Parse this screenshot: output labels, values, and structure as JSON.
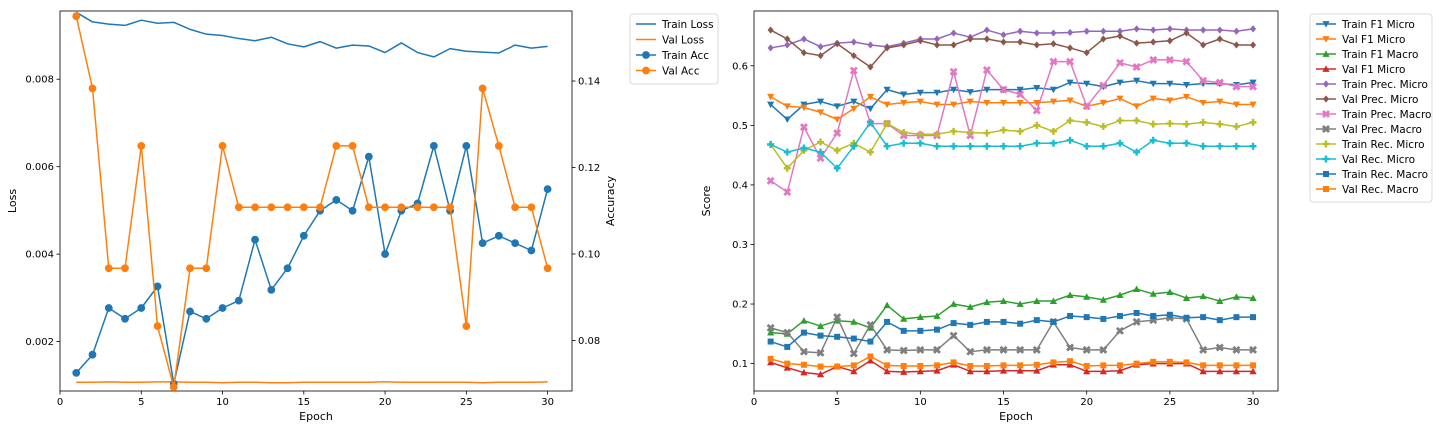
{
  "chart_data": [
    {
      "type": "line",
      "xlabel": "Epoch",
      "ylabel": "Loss",
      "ylabel_right": "Accuracy",
      "x": [
        1,
        2,
        3,
        4,
        5,
        6,
        7,
        8,
        9,
        10,
        11,
        12,
        13,
        14,
        15,
        16,
        17,
        18,
        19,
        20,
        21,
        22,
        23,
        24,
        25,
        26,
        27,
        28,
        29,
        30
      ],
      "xlim": [
        0.0,
        31.5
      ],
      "ylim": [
        0.00087,
        0.00956
      ],
      "ylim_right": [
        0.0683,
        0.1562
      ],
      "xticks": [
        0,
        5,
        10,
        15,
        20,
        25,
        30
      ],
      "yticks": [
        0.002,
        0.004,
        0.006,
        0.008
      ],
      "yticks_right": [
        0.08,
        0.1,
        0.12,
        0.14
      ],
      "legend_position": "outside-top-right",
      "grid": false,
      "series": [
        {
          "name": "Train Loss",
          "axis": "left",
          "color": "#1f77b4",
          "marker": "none",
          "values": [
            0.00953,
            0.00931,
            0.00926,
            0.00923,
            0.00935,
            0.00928,
            0.0093,
            0.00914,
            0.00903,
            0.009,
            0.00893,
            0.00888,
            0.00896,
            0.00881,
            0.00874,
            0.00886,
            0.00871,
            0.00878,
            0.00876,
            0.00861,
            0.00883,
            0.00861,
            0.00851,
            0.0087,
            0.00864,
            0.00862,
            0.0086,
            0.00878,
            0.00871,
            0.00875
          ]
        },
        {
          "name": "Val Loss",
          "axis": "left",
          "color": "#ff7f0e",
          "marker": "none",
          "values": [
            0.00107,
            0.00107,
            0.00108,
            0.00107,
            0.00107,
            0.00108,
            0.00108,
            0.00107,
            0.00107,
            0.00106,
            0.00107,
            0.00107,
            0.00106,
            0.00106,
            0.00107,
            0.00107,
            0.00107,
            0.00107,
            0.00107,
            0.00108,
            0.00107,
            0.00107,
            0.00107,
            0.00107,
            0.00107,
            0.00106,
            0.00107,
            0.00107,
            0.00107,
            0.00108
          ]
        },
        {
          "name": "Train Acc",
          "axis": "right",
          "color": "#1f77b4",
          "marker": "circle",
          "values": [
            0.0725,
            0.0767,
            0.0875,
            0.085,
            0.0875,
            0.0925,
            0.07,
            0.0867,
            0.085,
            0.0875,
            0.0892,
            0.1033,
            0.0917,
            0.0967,
            0.1042,
            0.11,
            0.1125,
            0.11,
            0.1225,
            0.1,
            0.11,
            0.1117,
            0.125,
            0.11,
            0.125,
            0.1025,
            0.1042,
            0.1025,
            0.1008,
            0.115
          ]
        },
        {
          "name": "Val Acc",
          "axis": "right",
          "color": "#ff7f0e",
          "marker": "circle",
          "values": [
            0.155,
            0.1383,
            0.0967,
            0.0967,
            0.125,
            0.0833,
            0.0692,
            0.0967,
            0.0967,
            0.125,
            0.1108,
            0.1108,
            0.1108,
            0.1108,
            0.1108,
            0.1108,
            0.125,
            0.125,
            0.1108,
            0.1108,
            0.1108,
            0.1108,
            0.1108,
            0.1108,
            0.0833,
            0.1383,
            0.125,
            0.1108,
            0.1108,
            0.0967
          ]
        }
      ]
    },
    {
      "type": "line",
      "xlabel": "Epoch",
      "ylabel": "Score",
      "x": [
        1,
        2,
        3,
        4,
        5,
        6,
        7,
        8,
        9,
        10,
        11,
        12,
        13,
        14,
        15,
        16,
        17,
        18,
        19,
        20,
        21,
        22,
        23,
        24,
        25,
        26,
        27,
        28,
        29,
        30
      ],
      "xlim": [
        0.0,
        31.5
      ],
      "ylim": [
        0.054,
        0.692
      ],
      "xticks": [
        0,
        5,
        10,
        15,
        20,
        25,
        30
      ],
      "yticks": [
        0.1,
        0.2,
        0.3,
        0.4,
        0.5,
        0.6
      ],
      "legend_position": "outside-top-right",
      "grid": false,
      "series": [
        {
          "name": "Train F1 Micro",
          "color": "#1f77b4",
          "marker": "triangle-down",
          "values": [
            0.535,
            0.51,
            0.535,
            0.54,
            0.532,
            0.54,
            0.528,
            0.56,
            0.552,
            0.555,
            0.555,
            0.56,
            0.556,
            0.56,
            0.56,
            0.56,
            0.563,
            0.56,
            0.572,
            0.57,
            0.565,
            0.572,
            0.575,
            0.57,
            0.57,
            0.568,
            0.57,
            0.57,
            0.568,
            0.572
          ]
        },
        {
          "name": "Val F1 Micro",
          "color": "#ff7f0e",
          "marker": "triangle-down",
          "values": [
            0.548,
            0.532,
            0.53,
            0.522,
            0.51,
            0.528,
            0.548,
            0.535,
            0.538,
            0.54,
            0.535,
            0.535,
            0.54,
            0.538,
            0.538,
            0.538,
            0.538,
            0.54,
            0.542,
            0.532,
            0.538,
            0.545,
            0.532,
            0.545,
            0.542,
            0.548,
            0.538,
            0.54,
            0.535,
            0.535
          ]
        },
        {
          "name": "Train F1 Macro",
          "color": "#2ca02c",
          "marker": "triangle-up",
          "values": [
            0.152,
            0.15,
            0.172,
            0.163,
            0.172,
            0.17,
            0.16,
            0.198,
            0.175,
            0.178,
            0.18,
            0.2,
            0.195,
            0.203,
            0.205,
            0.2,
            0.205,
            0.205,
            0.215,
            0.212,
            0.207,
            0.215,
            0.225,
            0.217,
            0.22,
            0.21,
            0.213,
            0.205,
            0.212,
            0.21
          ]
        },
        {
          "name": "Val F1 Micro",
          "color": "#d62728",
          "marker": "triangle-up",
          "values": [
            0.102,
            0.093,
            0.085,
            0.082,
            0.095,
            0.087,
            0.105,
            0.087,
            0.086,
            0.087,
            0.088,
            0.098,
            0.087,
            0.087,
            0.088,
            0.088,
            0.088,
            0.098,
            0.098,
            0.087,
            0.087,
            0.088,
            0.098,
            0.1,
            0.1,
            0.1,
            0.087,
            0.087,
            0.087,
            0.087
          ]
        },
        {
          "name": "Train Prec. Micro",
          "color": "#9467bd",
          "marker": "diamond",
          "values": [
            0.63,
            0.635,
            0.645,
            0.632,
            0.638,
            0.64,
            0.635,
            0.632,
            0.638,
            0.645,
            0.645,
            0.655,
            0.648,
            0.66,
            0.652,
            0.658,
            0.655,
            0.655,
            0.656,
            0.658,
            0.658,
            0.658,
            0.662,
            0.66,
            0.662,
            0.66,
            0.66,
            0.66,
            0.658,
            0.662
          ]
        },
        {
          "name": "Val Prec. Micro",
          "color": "#8c564b",
          "marker": "diamond",
          "values": [
            0.66,
            0.645,
            0.622,
            0.617,
            0.637,
            0.617,
            0.598,
            0.63,
            0.635,
            0.642,
            0.635,
            0.635,
            0.645,
            0.645,
            0.64,
            0.64,
            0.635,
            0.637,
            0.63,
            0.622,
            0.645,
            0.65,
            0.638,
            0.64,
            0.642,
            0.655,
            0.635,
            0.645,
            0.635,
            0.635
          ]
        },
        {
          "name": "Train Prec. Macro",
          "color": "#e377c2",
          "marker": "x-fat",
          "values": [
            0.407,
            0.388,
            0.497,
            0.445,
            0.487,
            0.592,
            0.503,
            0.503,
            0.483,
            0.483,
            0.483,
            0.59,
            0.483,
            0.593,
            0.56,
            0.552,
            0.525,
            0.607,
            0.607,
            0.532,
            0.567,
            0.605,
            0.598,
            0.61,
            0.61,
            0.607,
            0.575,
            0.572,
            0.565,
            0.565
          ]
        },
        {
          "name": "Val Prec. Macro",
          "color": "#7f7f7f",
          "marker": "x-fat",
          "values": [
            0.16,
            0.152,
            0.12,
            0.118,
            0.178,
            0.117,
            0.165,
            0.123,
            0.122,
            0.123,
            0.123,
            0.147,
            0.12,
            0.123,
            0.123,
            0.123,
            0.123,
            0.17,
            0.127,
            0.123,
            0.123,
            0.155,
            0.17,
            0.173,
            0.177,
            0.175,
            0.123,
            0.127,
            0.123,
            0.123
          ]
        },
        {
          "name": "Train Rec. Micro",
          "color": "#bcbd22",
          "marker": "plus",
          "values": [
            0.468,
            0.428,
            0.458,
            0.472,
            0.458,
            0.47,
            0.455,
            0.503,
            0.488,
            0.485,
            0.485,
            0.49,
            0.488,
            0.487,
            0.492,
            0.49,
            0.5,
            0.49,
            0.508,
            0.505,
            0.498,
            0.508,
            0.508,
            0.502,
            0.503,
            0.502,
            0.505,
            0.502,
            0.498,
            0.505
          ]
        },
        {
          "name": "Val Rec. Micro",
          "color": "#17becf",
          "marker": "plus",
          "values": [
            0.468,
            0.455,
            0.462,
            0.455,
            0.428,
            0.465,
            0.505,
            0.465,
            0.47,
            0.47,
            0.465,
            0.465,
            0.465,
            0.465,
            0.465,
            0.465,
            0.47,
            0.47,
            0.475,
            0.465,
            0.465,
            0.47,
            0.455,
            0.475,
            0.47,
            0.47,
            0.465,
            0.465,
            0.465,
            0.465
          ]
        },
        {
          "name": "Train Rec. Macro",
          "color": "#1f77b4",
          "marker": "square",
          "values": [
            0.137,
            0.128,
            0.152,
            0.147,
            0.145,
            0.142,
            0.137,
            0.17,
            0.155,
            0.155,
            0.157,
            0.168,
            0.165,
            0.17,
            0.17,
            0.167,
            0.173,
            0.17,
            0.18,
            0.178,
            0.175,
            0.18,
            0.185,
            0.18,
            0.182,
            0.177,
            0.178,
            0.173,
            0.178,
            0.178
          ]
        },
        {
          "name": "Val Rec. Macro",
          "color": "#ff7f0e",
          "marker": "square",
          "values": [
            0.108,
            0.1,
            0.098,
            0.095,
            0.095,
            0.097,
            0.112,
            0.097,
            0.096,
            0.096,
            0.097,
            0.102,
            0.096,
            0.096,
            0.097,
            0.097,
            0.098,
            0.102,
            0.104,
            0.096,
            0.097,
            0.097,
            0.1,
            0.103,
            0.103,
            0.102,
            0.097,
            0.097,
            0.097,
            0.097
          ]
        }
      ]
    }
  ]
}
